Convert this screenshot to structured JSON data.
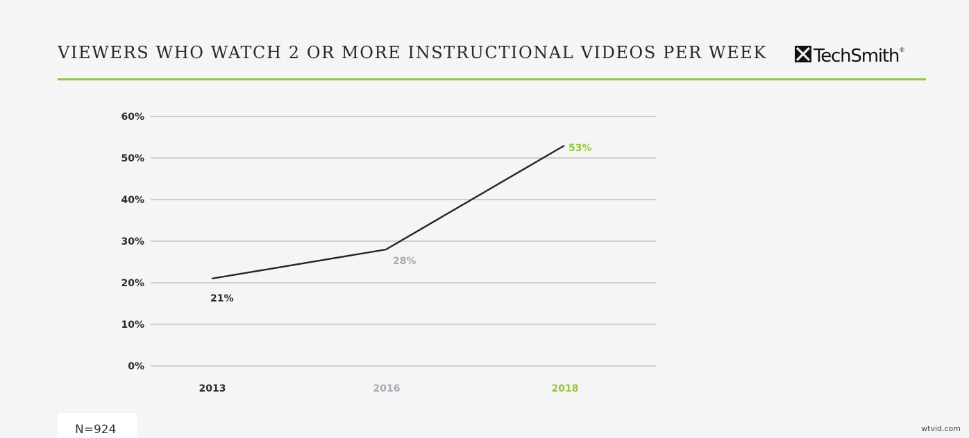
{
  "header": {
    "title": "VIEWERS WHO WATCH 2 OR MORE INSTRUCTIONAL VIDEOS PER WEEK",
    "logo_text": "TechSmith",
    "logo_mark": "®"
  },
  "colors": {
    "accent": "#93c83e",
    "line": "#23232b",
    "grid": "#a9a9a9",
    "dark_label": "#2b2b33",
    "gray_label": "#a3abb3",
    "green_label": "#93c83e"
  },
  "chart_data": {
    "type": "line",
    "title": "VIEWERS WHO WATCH 2 OR MORE INSTRUCTIONAL VIDEOS PER WEEK",
    "categories": [
      "2013",
      "2016",
      "2018"
    ],
    "category_colors": [
      "#2b2b33",
      "#a3abb3",
      "#93c83e"
    ],
    "series": [
      {
        "values": [
          21,
          28,
          53
        ],
        "labels": [
          "21%",
          "28%",
          "53%"
        ]
      }
    ],
    "y_ticks": [
      "0%",
      "10%",
      "20%",
      "30%",
      "40%",
      "50%",
      "60%"
    ],
    "y_tick_values": [
      0,
      10,
      20,
      30,
      40,
      50,
      60
    ],
    "ylim": [
      0,
      60
    ],
    "grid": true,
    "legend": "none",
    "xlabel": "",
    "ylabel": ""
  },
  "footer": {
    "sample_size": "N=924",
    "watermark": "wtvid.com"
  }
}
